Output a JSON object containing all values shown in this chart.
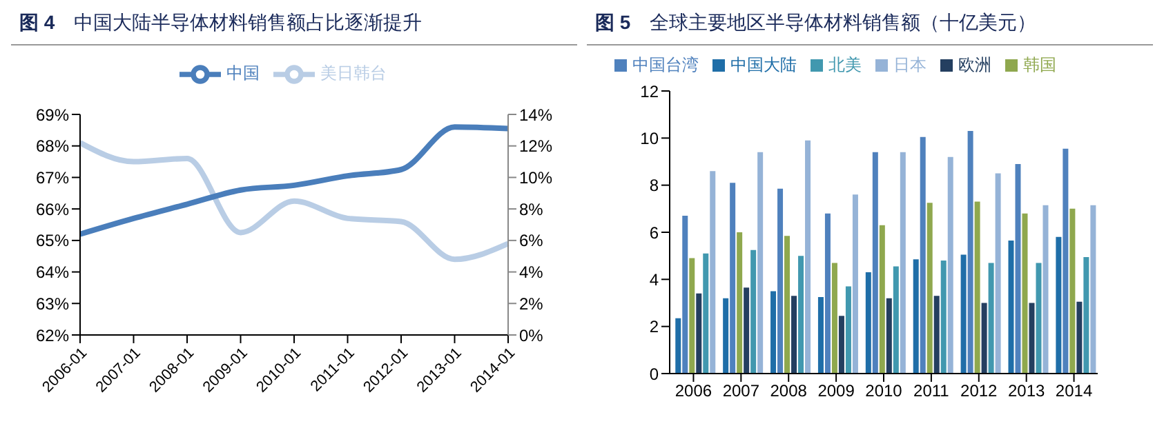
{
  "chart_data": [
    {
      "type": "line",
      "title": "图 4　中国大陆半导体材料销售额占比逐渐提升",
      "categories": [
        "2006-01",
        "2007-01",
        "2008-01",
        "2009-01",
        "2010-01",
        "2011-01",
        "2012-01",
        "2013-01",
        "2014-01"
      ],
      "series": [
        {
          "name": "美日韩台",
          "color": "#b9cde5",
          "values": [
            68.1,
            67.5,
            67.6,
            65.25,
            66.25,
            65.7,
            65.6,
            64.4,
            64.9
          ]
        },
        {
          "name": "中国",
          "color": "#4a7ebb",
          "axis": "y2",
          "values": [
            6.4,
            7.4,
            8.3,
            9.2,
            9.5,
            10.1,
            10.5,
            13.2,
            13.1
          ]
        }
      ],
      "ylim": [
        62,
        69
      ],
      "yticks": [
        {
          "value": 62,
          "label": "62%"
        },
        {
          "value": 63,
          "label": "63%"
        },
        {
          "value": 64,
          "label": "64%"
        },
        {
          "value": 65,
          "label": "65%"
        },
        {
          "value": 66,
          "label": "66%"
        },
        {
          "value": 67,
          "label": "67%"
        },
        {
          "value": 68,
          "label": "68%"
        },
        {
          "value": 69,
          "label": "69%"
        }
      ],
      "y2lim": [
        0,
        14
      ],
      "y2ticks": [
        {
          "value": 0,
          "label": "0%"
        },
        {
          "value": 2,
          "label": "2%"
        },
        {
          "value": 4,
          "label": "4%"
        },
        {
          "value": 6,
          "label": "6%"
        },
        {
          "value": 8,
          "label": "8%"
        },
        {
          "value": 10,
          "label": "10%"
        },
        {
          "value": 12,
          "label": "12%"
        },
        {
          "value": 14,
          "label": "14%"
        }
      ],
      "legend": "top",
      "marker": "none"
    },
    {
      "type": "bar",
      "title": "图 5　全球主要地区半导体材料销售额（十亿美元）",
      "categories": [
        "2006",
        "2007",
        "2008",
        "2009",
        "2010",
        "2011",
        "2012",
        "2013",
        "2014"
      ],
      "series": [
        {
          "name": "中国大陆",
          "color": "#1f6ea8",
          "values": [
            2.35,
            3.2,
            3.5,
            3.25,
            4.3,
            4.85,
            5.05,
            5.65,
            5.8
          ]
        },
        {
          "name": "中国台湾",
          "color": "#4f81bd",
          "values": [
            6.7,
            8.1,
            7.85,
            6.8,
            9.4,
            10.05,
            10.3,
            8.9,
            9.55
          ]
        },
        {
          "name": "韩国",
          "color": "#8fa84e",
          "values": [
            4.9,
            6.0,
            5.85,
            4.7,
            6.3,
            7.25,
            7.3,
            6.8,
            7.0
          ]
        },
        {
          "name": "欧洲",
          "color": "#243f60",
          "values": [
            3.4,
            3.65,
            3.3,
            2.45,
            3.2,
            3.3,
            3.0,
            3.0,
            3.05
          ]
        },
        {
          "name": "北美",
          "color": "#4198af",
          "values": [
            5.1,
            5.25,
            5.0,
            3.7,
            4.55,
            4.8,
            4.7,
            4.7,
            4.95
          ]
        },
        {
          "name": "日本",
          "color": "#95b3d7",
          "values": [
            8.6,
            9.4,
            9.9,
            7.6,
            9.4,
            9.2,
            8.5,
            7.15,
            7.15
          ]
        }
      ],
      "ylim": [
        0,
        12
      ],
      "yticks": [
        0,
        2,
        4,
        6,
        8,
        10,
        12
      ],
      "legend": "top"
    }
  ]
}
